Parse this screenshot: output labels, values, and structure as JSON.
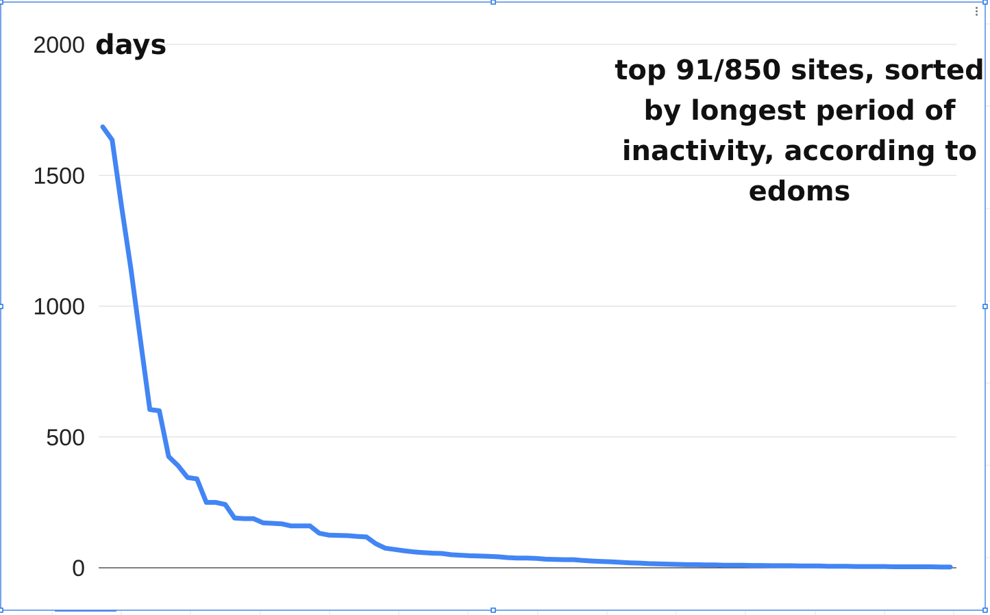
{
  "chart_data": {
    "type": "line",
    "title": "top 91/850 sites, sorted by longest period of inactivity, according to edoms",
    "ylabel": "days",
    "xlabel": "",
    "ylim": [
      0,
      2000
    ],
    "yticks": [
      0,
      500,
      1000,
      1500,
      2000
    ],
    "grid": true,
    "legend": "none",
    "x": [
      1,
      2,
      3,
      4,
      5,
      6,
      7,
      8,
      9,
      10,
      11,
      12,
      13,
      14,
      15,
      16,
      17,
      18,
      19,
      20,
      21,
      22,
      23,
      24,
      25,
      26,
      27,
      28,
      29,
      30,
      31,
      32,
      33,
      34,
      35,
      36,
      37,
      38,
      39,
      40,
      41,
      42,
      43,
      44,
      45,
      46,
      47,
      48,
      49,
      50,
      51,
      52,
      53,
      54,
      55,
      56,
      57,
      58,
      59,
      60,
      61,
      62,
      63,
      64,
      65,
      66,
      67,
      68,
      69,
      70,
      71,
      72,
      73,
      74,
      75,
      76,
      77,
      78,
      79,
      80,
      81,
      82,
      83,
      84,
      85,
      86,
      87,
      88,
      89,
      90,
      91
    ],
    "series": [
      {
        "values": [
          1685,
          1635,
          1380,
          1140,
          870,
          605,
          600,
          425,
          390,
          345,
          340,
          250,
          250,
          242,
          190,
          188,
          188,
          172,
          170,
          168,
          160,
          160,
          160,
          132,
          125,
          124,
          123,
          120,
          118,
          92,
          75,
          70,
          65,
          61,
          58,
          56,
          55,
          50,
          48,
          46,
          45,
          44,
          42,
          39,
          37,
          37,
          36,
          33,
          32,
          31,
          31,
          28,
          26,
          24,
          23,
          21,
          19,
          18,
          16,
          15,
          14,
          13,
          12,
          12,
          11,
          11,
          10,
          10,
          10,
          9,
          9,
          8,
          8,
          8,
          7,
          7,
          7,
          6,
          6,
          6,
          5,
          5,
          5,
          5,
          4,
          4,
          4,
          4,
          4,
          3,
          3
        ],
        "color": "#4285f4"
      }
    ]
  }
}
